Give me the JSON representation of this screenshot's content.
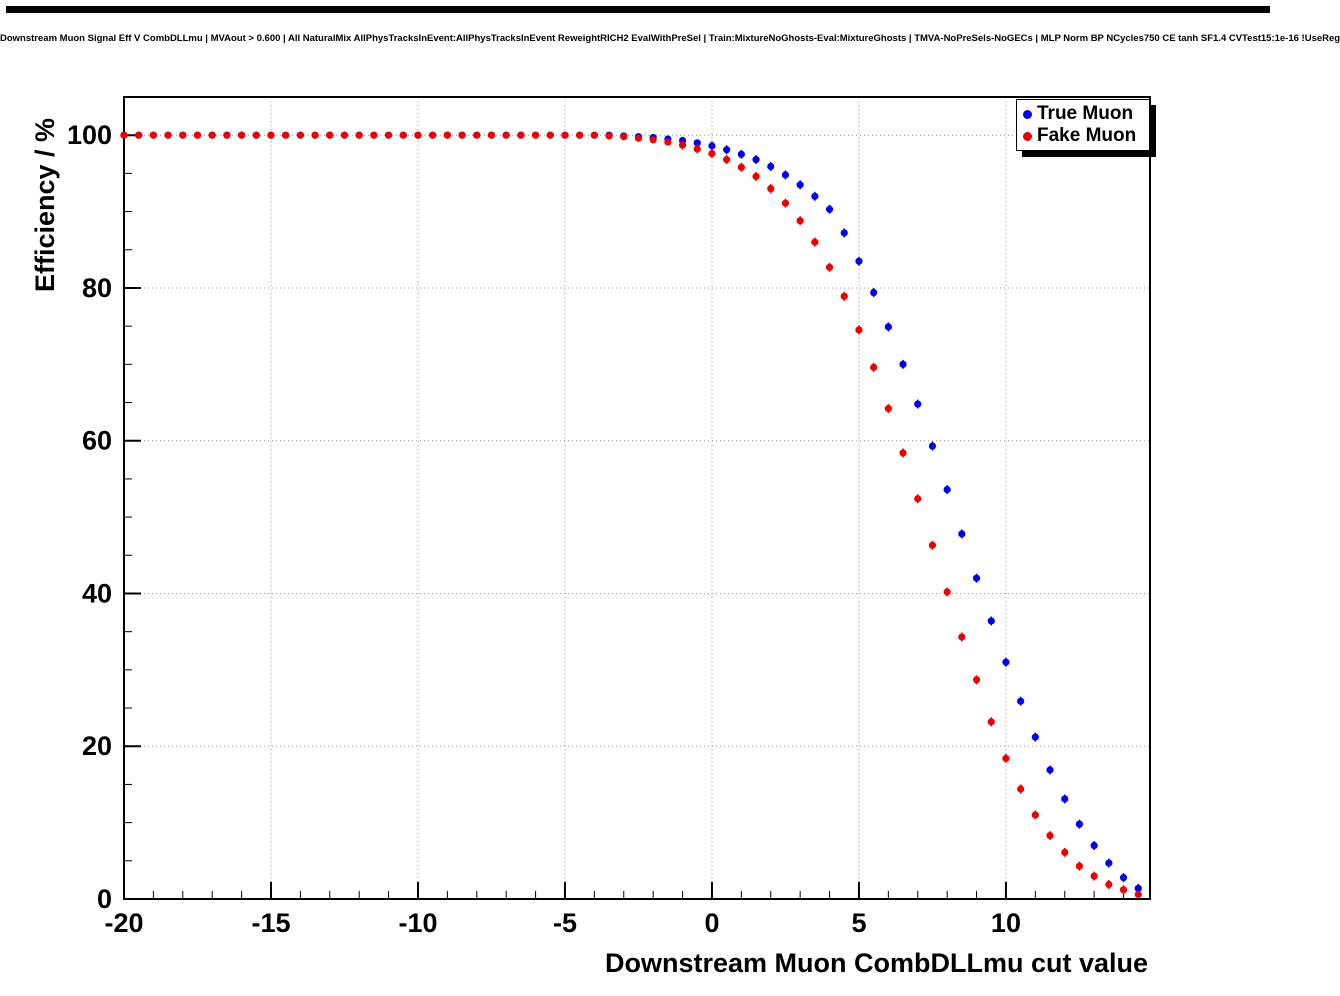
{
  "header": {
    "title": "Downstream Muon Signal Eff V CombDLLmu | MVAout > 0.600 | All NaturalMix AllPhysTracksInEvent:AllPhysTracksInEvent ReweightRICH2 EvalWithPreSel | Train:MixtureNoGhosts-Eval:MixtureGhosts | TMVA-NoPreSels-NoGECs | MLP Norm BP NCycles750 CE tanh SF1.4 CVTest15:1e-16 !UseReg"
  },
  "colors": {
    "true_muon": "#0000ee",
    "fake_muon": "#ee0000",
    "frame": "#000000",
    "grid": "#999999",
    "background": "#ffffff"
  },
  "chart_data": {
    "type": "scatter",
    "title": "Downstream Muon Signal Eff V CombDLLmu",
    "xlabel": "Downstream Muon CombDLLmu cut value",
    "ylabel": "Efficiency / %",
    "xlim": [
      -20,
      14.9
    ],
    "ylim": [
      0,
      105
    ],
    "xticks": [
      -20,
      -15,
      -10,
      -5,
      0,
      5,
      10
    ],
    "yticks": [
      0,
      20,
      40,
      60,
      80,
      100
    ],
    "x_minor_step": 1,
    "y_minor_step": 5,
    "grid": true,
    "grid_style": "dotted",
    "legend_position": "top-right",
    "x": [
      -20,
      -19.5,
      -19,
      -18.5,
      -18,
      -17.5,
      -17,
      -16.5,
      -16,
      -15.5,
      -15,
      -14.5,
      -14,
      -13.5,
      -13,
      -12.5,
      -12,
      -11.5,
      -11,
      -10.5,
      -10,
      -9.5,
      -9,
      -8.5,
      -8,
      -7.5,
      -7,
      -6.5,
      -6,
      -5.5,
      -5,
      -4.5,
      -4,
      -3.5,
      -3,
      -2.5,
      -2,
      -1.5,
      -1,
      -0.5,
      0,
      0.5,
      1,
      1.5,
      2,
      2.5,
      3,
      3.5,
      4,
      4.5,
      5,
      5.5,
      6,
      6.5,
      7,
      7.5,
      8,
      8.5,
      9,
      9.5,
      10,
      10.5,
      11,
      11.5,
      12,
      12.5,
      13,
      13.5,
      14,
      14.5
    ],
    "series": [
      {
        "name": "True Muon",
        "color": "#0000ee",
        "marker": "circle",
        "values": [
          100,
          100,
          100,
          100,
          100,
          100,
          100,
          100,
          100,
          100,
          100,
          100,
          100,
          100,
          100,
          100,
          100,
          100,
          100,
          100,
          100,
          100,
          100,
          100,
          100,
          100,
          100,
          100,
          100,
          100,
          100,
          100,
          100,
          100,
          99.9,
          99.8,
          99.7,
          99.5,
          99.3,
          99.0,
          98.6,
          98.1,
          97.5,
          96.8,
          95.9,
          94.8,
          93.5,
          92.0,
          90.3,
          87.2,
          83.5,
          79.4,
          74.9,
          70.0,
          64.8,
          59.3,
          53.6,
          47.8,
          42.0,
          36.4,
          31.0,
          25.9,
          21.2,
          16.9,
          13.1,
          9.8,
          7.0,
          4.7,
          2.8,
          1.4
        ]
      },
      {
        "name": "Fake Muon",
        "color": "#ee0000",
        "marker": "circle",
        "values": [
          100,
          100,
          100,
          100,
          100,
          100,
          100,
          100,
          100,
          100,
          100,
          100,
          100,
          100,
          100,
          100,
          100,
          100,
          100,
          100,
          100,
          100,
          100,
          100,
          100,
          100,
          100,
          100,
          100,
          100,
          100,
          100,
          100,
          99.9,
          99.8,
          99.6,
          99.4,
          99.1,
          98.7,
          98.2,
          97.6,
          96.8,
          95.8,
          94.6,
          93.0,
          91.1,
          88.8,
          86.0,
          82.7,
          78.9,
          74.5,
          69.6,
          64.2,
          58.4,
          52.4,
          46.3,
          40.2,
          34.3,
          28.7,
          23.2,
          18.4,
          14.4,
          11.0,
          8.3,
          6.1,
          4.3,
          3.0,
          1.9,
          1.2,
          0.6
        ]
      }
    ]
  }
}
